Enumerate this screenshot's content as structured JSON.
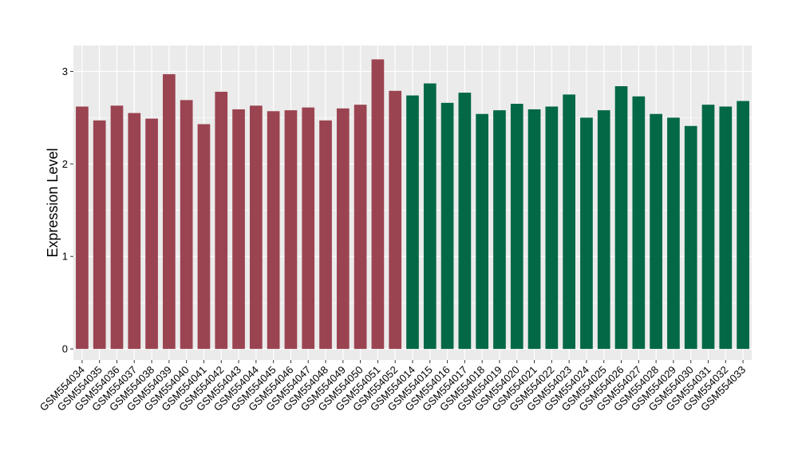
{
  "chart_data": {
    "type": "bar",
    "title": "",
    "xlabel": "",
    "ylabel": "Expression Level",
    "ylim": [
      -0.12,
      3.28
    ],
    "yticks": [
      0,
      1,
      2,
      3
    ],
    "grid": true,
    "legend": "none",
    "categories": [
      "GSM554034",
      "GSM554035",
      "GSM554036",
      "GSM554037",
      "GSM554038",
      "GSM554039",
      "GSM554040",
      "GSM554041",
      "GSM554042",
      "GSM554043",
      "GSM554044",
      "GSM554045",
      "GSM554046",
      "GSM554047",
      "GSM554048",
      "GSM554049",
      "GSM554050",
      "GSM554051",
      "GSM554052",
      "GSM554014",
      "GSM554015",
      "GSM554016",
      "GSM554017",
      "GSM554018",
      "GSM554019",
      "GSM554020",
      "GSM554021",
      "GSM554022",
      "GSM554023",
      "GSM554024",
      "GSM554025",
      "GSM554026",
      "GSM554027",
      "GSM554028",
      "GSM554029",
      "GSM554030",
      "GSM554031",
      "GSM554032",
      "GSM554033"
    ],
    "values": [
      2.62,
      2.47,
      2.63,
      2.55,
      2.49,
      2.97,
      2.69,
      2.43,
      2.78,
      2.59,
      2.63,
      2.57,
      2.58,
      2.61,
      2.47,
      2.6,
      2.64,
      3.13,
      2.79,
      2.74,
      2.87,
      2.66,
      2.77,
      2.54,
      2.58,
      2.65,
      2.59,
      2.62,
      2.75,
      2.5,
      2.58,
      2.84,
      2.73,
      2.54,
      2.5,
      2.41,
      2.64,
      2.62,
      2.68
    ],
    "bar_colors": [
      "#9b4451",
      "#9b4451",
      "#9b4451",
      "#9b4451",
      "#9b4451",
      "#9b4451",
      "#9b4451",
      "#9b4451",
      "#9b4451",
      "#9b4451",
      "#9b4451",
      "#9b4451",
      "#9b4451",
      "#9b4451",
      "#9b4451",
      "#9b4451",
      "#9b4451",
      "#9b4451",
      "#9b4451",
      "#026846",
      "#026846",
      "#026846",
      "#026846",
      "#026846",
      "#026846",
      "#026846",
      "#026846",
      "#026846",
      "#026846",
      "#026846",
      "#026846",
      "#026846",
      "#026846",
      "#026846",
      "#026846",
      "#026846",
      "#026846",
      "#026846",
      "#026846"
    ],
    "panel_color": "#ebebeb",
    "grid_color": "#ffffff"
  }
}
